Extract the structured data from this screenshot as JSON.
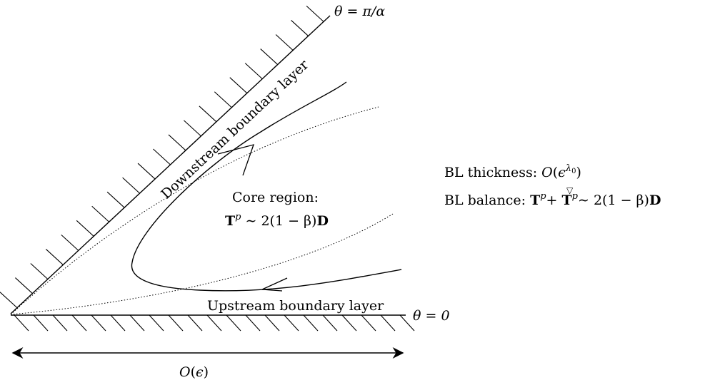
{
  "labels": {
    "theta_top": "θ = π/α",
    "theta_bottom": "θ = 0",
    "downstream": "Downstream boundary layer",
    "upstream": "Upstream boundary layer",
    "core_title": "Core region:",
    "core_eq_T": "T",
    "core_eq_p": "p",
    "core_eq_rest": " ∼ 2(1 − β)",
    "core_eq_D": "D",
    "bl_thickness_prefix": "BL thickness: ",
    "bl_thickness_O": "O",
    "bl_thickness_open": "(",
    "bl_thickness_eps": "ϵ",
    "bl_thickness_lambda": "λ",
    "bl_thickness_sub": "0",
    "bl_thickness_close": ")",
    "bl_balance_prefix": "BL balance: ",
    "bl_balance_T1": "T",
    "bl_balance_p1": "p",
    "bl_balance_plus": "+ ",
    "bl_balance_nabla": "▽",
    "bl_balance_T2": "T",
    "bl_balance_p2": "p",
    "bl_balance_rest": "∼ 2(1 − β)",
    "bl_balance_D": "D",
    "scale_O": "O",
    "scale_paren_open": "(",
    "scale_eps": "ϵ",
    "scale_paren_close": ")"
  },
  "colors": {
    "ink": "#000000"
  }
}
